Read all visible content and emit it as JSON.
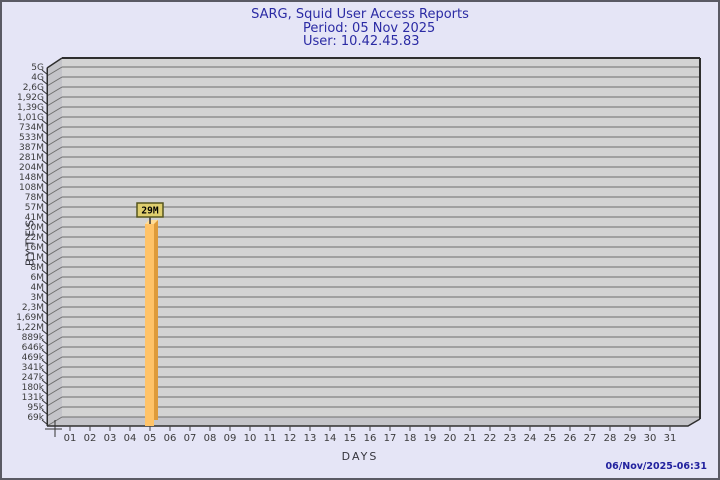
{
  "chart_data": {
    "type": "bar",
    "title": "SARG, Squid User Access Reports",
    "period_line": "Period: 05 Nov 2025",
    "user_line": "User: 10.42.45.83",
    "xlabel": "DAYS",
    "ylabel": "BYTES",
    "timestamp": "06/Nov/2025-06:31",
    "x_tick_labels": [
      "01",
      "02",
      "03",
      "04",
      "05",
      "06",
      "07",
      "08",
      "09",
      "10",
      "11",
      "12",
      "13",
      "14",
      "15",
      "16",
      "17",
      "18",
      "19",
      "20",
      "21",
      "22",
      "23",
      "24",
      "25",
      "26",
      "27",
      "28",
      "29",
      "30",
      "31"
    ],
    "y_tick_labels": [
      "5G",
      "4G",
      "2,6G",
      "1,92G",
      "1,39G",
      "1,01G",
      "734M",
      "533M",
      "387M",
      "281M",
      "204M",
      "148M",
      "108M",
      "78M",
      "57M",
      "41M",
      "30M",
      "22M",
      "16M",
      "11M",
      "8M",
      "6M",
      "4M",
      "3M",
      "2,3M",
      "1,69M",
      "1,22M",
      "889k",
      "646k",
      "469k",
      "341k",
      "247k",
      "180k",
      "131k",
      "95k",
      "69k"
    ],
    "bars": [
      {
        "day": "05",
        "value_label": "29M",
        "tick_pos": 15.7
      }
    ],
    "axis_scale": "log-like (SARG bytes scale)",
    "legend": null,
    "grid": true,
    "colors": {
      "background": "#E5E5F6",
      "frame_border": "#5A5A64",
      "title_text": "#2B2BA4",
      "timestamp_text": "#21219E",
      "plot_bg": "#D3D3D3",
      "wall": "#C4C4C9",
      "gridline": "#6E6E6E",
      "plot_edge": "#2E2E2E",
      "tick_text": "#3C3C3C",
      "bar_front": "#FFC368",
      "bar_side": "#DE9B3A",
      "bar_top": "#FFDC96",
      "flag_bg": "#DECE6E",
      "flag_border": "#55551E",
      "flag_text": "#000000"
    }
  }
}
